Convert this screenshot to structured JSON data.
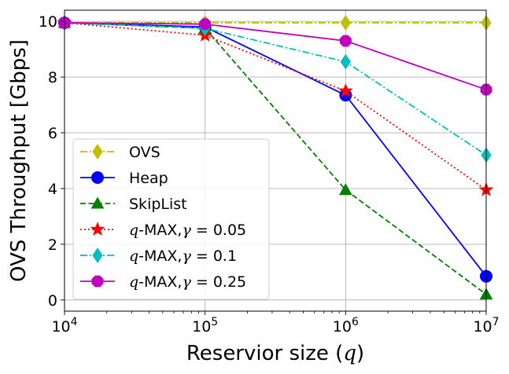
{
  "chart_data": {
    "type": "line",
    "xscale": "log",
    "xlabel": "Reservior size (q)",
    "ylabel": "OVS Throughput [Gbps]",
    "x": [
      10000,
      100000,
      1000000,
      10000000
    ],
    "xticks": [
      10000,
      100000,
      1000000,
      10000000
    ],
    "xtick_labels": [
      {
        "base": "10",
        "exp": "4"
      },
      {
        "base": "10",
        "exp": "5"
      },
      {
        "base": "10",
        "exp": "6"
      },
      {
        "base": "10",
        "exp": "7"
      }
    ],
    "xlim": [
      10000,
      10000000
    ],
    "ylim": [
      -0.4,
      10.4
    ],
    "yticks": [
      0,
      2,
      4,
      6,
      8,
      10
    ],
    "ytick_labels": [
      "0",
      "2",
      "4",
      "6",
      "8",
      "10"
    ],
    "grid": true,
    "legend_position": "lower-left",
    "series": [
      {
        "name": "OVS",
        "values": [
          9.95,
          9.95,
          9.95,
          9.95
        ],
        "color": "#bfbf00",
        "dash": "dashdot",
        "marker": "thin-diamond"
      },
      {
        "name": "Heap",
        "values": [
          9.95,
          9.8,
          7.35,
          0.85
        ],
        "color": "#0000ff",
        "dash": "solid",
        "marker": "circle"
      },
      {
        "name": "SkipList",
        "values": [
          9.95,
          9.75,
          3.95,
          0.2
        ],
        "color": "#008000",
        "dash": "dashed",
        "marker": "triangle"
      },
      {
        "name": "q-MAX,γ = 0.05",
        "values": [
          9.95,
          9.5,
          7.5,
          3.95
        ],
        "color": "#ff0000",
        "dash": "dotted",
        "marker": "star"
      },
      {
        "name": "q-MAX,γ = 0.1",
        "values": [
          9.95,
          9.75,
          8.55,
          5.2
        ],
        "color": "#00bfbf",
        "dash": "dashdot",
        "marker": "thin-diamond"
      },
      {
        "name": "q-MAX,γ = 0.25",
        "values": [
          9.95,
          9.9,
          9.3,
          7.55
        ],
        "color": "#bf00bf",
        "dash": "solid",
        "marker": "octagon"
      }
    ]
  }
}
